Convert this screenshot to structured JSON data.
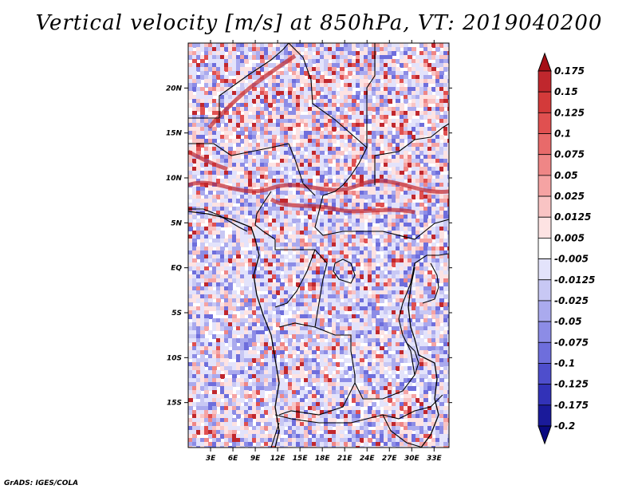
{
  "title": "Vertical velocity [m/s] at 850hPa, VT: 2019040200",
  "footer": "GrADS: IGES/COLA",
  "map": {
    "lat_labels": [
      "20N",
      "15N",
      "10N",
      "5N",
      "EQ",
      "5S",
      "10S",
      "15S"
    ],
    "lon_labels": [
      "3E",
      "6E",
      "9E",
      "12E",
      "15E",
      "18E",
      "21E",
      "24E",
      "27E",
      "30E",
      "33E"
    ],
    "lat_values": [
      20,
      15,
      10,
      5,
      0,
      -5,
      -10,
      -15
    ],
    "lon_values": [
      3,
      6,
      9,
      12,
      15,
      18,
      21,
      24,
      27,
      30,
      33
    ],
    "lat_range": [
      -20,
      25
    ],
    "lon_range": [
      0,
      35
    ]
  },
  "colorbar": {
    "labels": [
      "0.175",
      "0.15",
      "0.125",
      "0.1",
      "0.075",
      "0.05",
      "0.025",
      "0.0125",
      "0.005",
      "-0.005",
      "-0.0125",
      "-0.025",
      "-0.05",
      "-0.075",
      "-0.1",
      "-0.125",
      "-0.175",
      "-0.2"
    ],
    "colors": [
      "#a50f15",
      "#c0272d",
      "#d33a3a",
      "#e05050",
      "#e86a6a",
      "#ef8686",
      "#f5a3a3",
      "#f9c4c4",
      "#fde3e3",
      "#ffffff",
      "#e3e3fb",
      "#c8c8f4",
      "#aaaaee",
      "#8c8ce6",
      "#6e6edc",
      "#4e4ecc",
      "#3232b8",
      "#1a1a9a",
      "#0a0a80"
    ]
  }
}
